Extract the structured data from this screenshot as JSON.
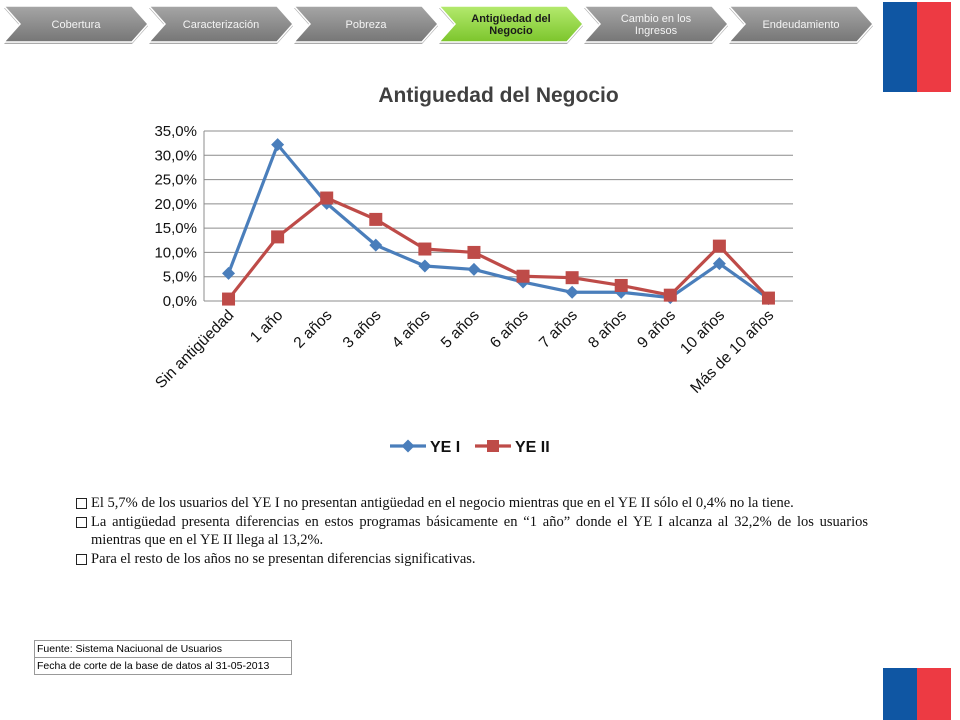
{
  "nav": {
    "items": [
      {
        "label": "Cobertura",
        "active": false
      },
      {
        "label": "Caracterización",
        "active": false
      },
      {
        "label": "Pobreza",
        "active": false
      },
      {
        "label": "Antigüedad del Negocio",
        "active": true
      },
      {
        "label": "Cambio en los Ingresos",
        "active": false
      },
      {
        "label": "Endeudamiento",
        "active": false
      }
    ]
  },
  "colors": {
    "nav_inactive": "#8c8c8c",
    "nav_active": "#8fd63a",
    "flag_blue": "#0f56a3",
    "flag_red": "#ed3a43",
    "series_1": "#4a7ebb",
    "series_2": "#be4b48"
  },
  "chart_data": {
    "type": "line",
    "title": "Antiguedad del Negocio",
    "xlabel": "",
    "ylabel": "",
    "ylim": [
      0,
      35
    ],
    "yticks": [
      "0,0%",
      "5,0%",
      "10,0%",
      "15,0%",
      "20,0%",
      "25,0%",
      "30,0%",
      "35,0%"
    ],
    "grid": true,
    "legend_position": "bottom",
    "categories": [
      "Sin antigüedad",
      "1 año",
      "2 años",
      "3 años",
      "4 años",
      "5 años",
      "6 años",
      "7 años",
      "8 años",
      "9 años",
      "10 años",
      "Más de 10 años"
    ],
    "series": [
      {
        "name": "YE I",
        "marker": "diamond",
        "values": [
          5.7,
          32.2,
          20.1,
          11.5,
          7.2,
          6.5,
          3.9,
          1.8,
          1.8,
          0.7,
          7.7,
          0.5
        ]
      },
      {
        "name": "YE II",
        "marker": "square",
        "values": [
          0.4,
          13.2,
          21.2,
          16.8,
          10.7,
          10.0,
          5.1,
          4.8,
          3.2,
          1.2,
          11.3,
          0.6
        ]
      }
    ]
  },
  "bullets": [
    "El 5,7% de los usuarios del YE I no presentan antigüedad en el negocio mientras que en el YE II sólo el 0,4% no la tiene.",
    "La antigüedad presenta diferencias en estos programas básicamente en “1 año” donde el YE I alcanza al 32,2% de los usuarios mientras que en el YE II  llega al 13,2%.",
    "Para el resto de los años no se presentan diferencias significativas."
  ],
  "source": {
    "line1": "Fuente: Sistema Naciuonal de Usuarios",
    "line2": "Fecha de corte de la base de datos al 31-05-2013"
  }
}
